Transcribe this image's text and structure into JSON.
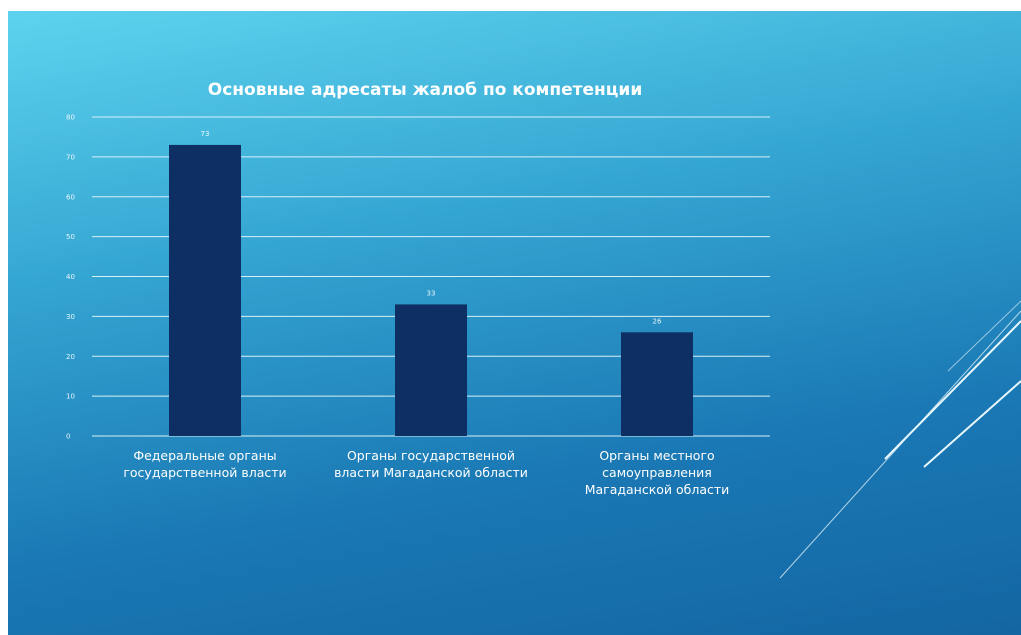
{
  "chart_data": {
    "type": "bar",
    "title": "Основные адресаты жалоб по компетенции",
    "categories": [
      [
        "Федеральные органы",
        "государственной власти"
      ],
      [
        "Органы государственной",
        "власти Магаданской области"
      ],
      [
        "Органы местного",
        "самоуправления",
        "Магаданской области"
      ]
    ],
    "values": [
      73,
      33,
      26
    ],
    "ylim": [
      0,
      80
    ],
    "yticks": [
      0,
      10,
      20,
      30,
      40,
      50,
      60,
      70,
      80
    ],
    "grid": true,
    "colors": {
      "bar": "#0e2f63",
      "grid": "#d7f0f8"
    }
  }
}
